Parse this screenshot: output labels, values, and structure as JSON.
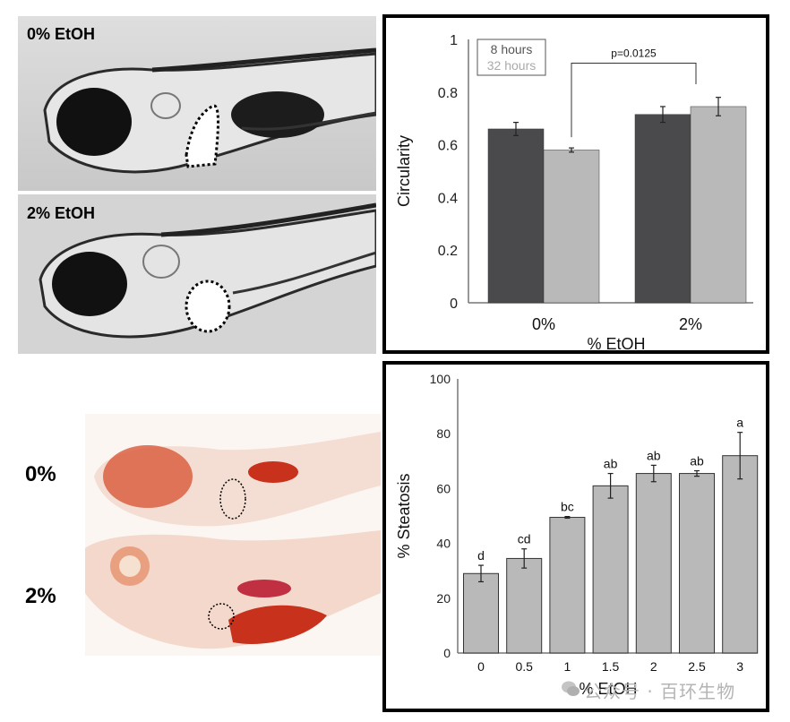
{
  "photos": {
    "top_label_0": "0% EtOH",
    "top_label_2": "2% EtOH",
    "bottom_label_0": "0%",
    "bottom_label_2": "2%"
  },
  "watermark": "公众号 · 百环生物",
  "colors": {
    "dark_bar": "#4a4a4c",
    "light_bar": "#b9b9b9",
    "photo_bg_top": "#cfcfcf",
    "stain_red": "#c8321c"
  },
  "chart_data": [
    {
      "type": "bar",
      "title": "",
      "xlabel": "% EtOH",
      "ylabel": "Circularity",
      "categories": [
        "0%",
        "2%"
      ],
      "ylim": [
        0,
        1
      ],
      "yticks": [
        "0",
        "0.2",
        "0.4",
        "0.6",
        "0.8",
        "1"
      ],
      "series": [
        {
          "name": "8 hours",
          "values": [
            0.66,
            0.715
          ],
          "errors": [
            0.025,
            0.03
          ]
        },
        {
          "name": "32 hours",
          "values": [
            0.58,
            0.745
          ],
          "errors": [
            0.008,
            0.035
          ]
        }
      ],
      "legend": "top-left",
      "annotation": "p=0.0125",
      "grid": false
    },
    {
      "type": "bar",
      "title": "",
      "xlabel": "% EtOH",
      "ylabel": "% Steatosis",
      "categories": [
        "0",
        "0.5",
        "1",
        "1.5",
        "2",
        "2.5",
        "3"
      ],
      "ylim": [
        0,
        100
      ],
      "yticks": [
        "0",
        "20",
        "40",
        "60",
        "80",
        "100"
      ],
      "values": [
        29,
        34.5,
        49.5,
        61,
        65.5,
        65.5,
        72
      ],
      "errors": [
        3,
        3.5,
        0.3,
        4.5,
        3,
        1,
        8.5
      ],
      "letters": [
        "d",
        "cd",
        "bc",
        "ab",
        "ab",
        "ab",
        "a"
      ],
      "grid": false
    }
  ]
}
